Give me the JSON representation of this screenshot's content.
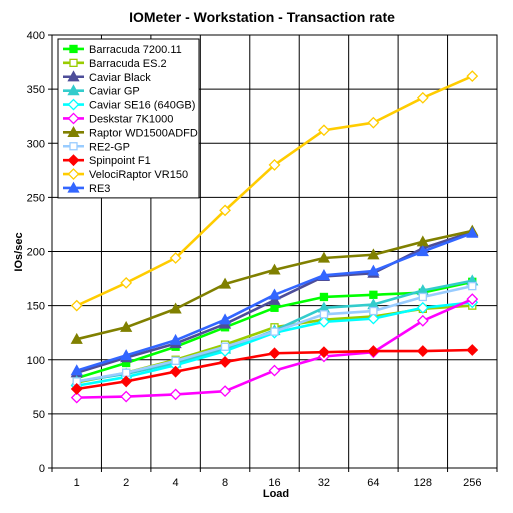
{
  "chart_data": {
    "type": "line",
    "title": "IOMeter - Workstation - Transaction rate",
    "xlabel": "Load",
    "ylabel": "IOs/sec",
    "categories": [
      "1",
      "2",
      "4",
      "8",
      "16",
      "32",
      "64",
      "128",
      "256"
    ],
    "ylim": [
      0,
      400
    ],
    "yticks": [
      0,
      50,
      100,
      150,
      200,
      250,
      300,
      350,
      400
    ],
    "grid": true,
    "legend_position": "top-left",
    "series": [
      {
        "name": "Barracuda 7200.11",
        "color": "#00ff00",
        "marker": "square-filled",
        "values": [
          83,
          97,
          112,
          130,
          148,
          158,
          160,
          162,
          172
        ]
      },
      {
        "name": "Barracuda ES.2",
        "color": "#99cc00",
        "marker": "square-open",
        "values": [
          79,
          88,
          100,
          114,
          130,
          137,
          140,
          147,
          150
        ]
      },
      {
        "name": "Caviar Black",
        "color": "#4d4d99",
        "marker": "triangle-filled",
        "values": [
          88,
          102,
          115,
          133,
          155,
          177,
          180,
          203,
          218
        ]
      },
      {
        "name": "Caviar GP",
        "color": "#33cccc",
        "marker": "triangle-filled",
        "values": [
          80,
          87,
          97,
          110,
          127,
          148,
          151,
          164,
          173
        ]
      },
      {
        "name": "Caviar SE16 (640GB)",
        "color": "#00ffff",
        "marker": "diamond-open",
        "values": [
          76,
          84,
          95,
          108,
          125,
          135,
          138,
          148,
          153
        ]
      },
      {
        "name": "Deskstar 7K1000",
        "color": "#ff00ff",
        "marker": "diamond-open",
        "values": [
          65,
          66,
          68,
          71,
          90,
          103,
          107,
          136,
          156
        ]
      },
      {
        "name": "Raptor WD1500ADFD",
        "color": "#808000",
        "marker": "triangle-filled",
        "values": [
          119,
          130,
          147,
          170,
          183,
          194,
          197,
          209,
          219
        ]
      },
      {
        "name": "RE2-GP",
        "color": "#99ccff",
        "marker": "square-open",
        "values": [
          80,
          88,
          99,
          112,
          126,
          142,
          145,
          158,
          168
        ]
      },
      {
        "name": "Spinpoint F1",
        "color": "#ff0000",
        "marker": "diamond-filled",
        "values": [
          73,
          80,
          89,
          98,
          106,
          107,
          108,
          108,
          109
        ]
      },
      {
        "name": "VelociRaptor VR150",
        "color": "#ffcc00",
        "marker": "diamond-open",
        "values": [
          150,
          171,
          194,
          238,
          280,
          312,
          319,
          342,
          362
        ]
      },
      {
        "name": "RE3",
        "color": "#3366ff",
        "marker": "triangle-filled",
        "values": [
          90,
          104,
          118,
          137,
          160,
          178,
          182,
          200,
          217
        ]
      }
    ]
  }
}
